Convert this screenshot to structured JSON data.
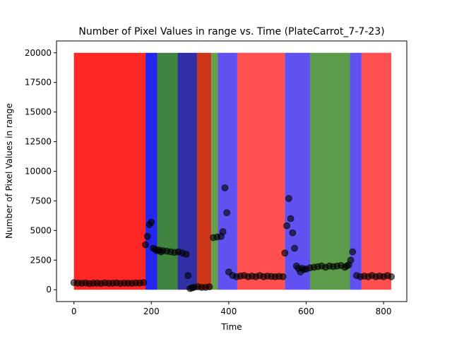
{
  "chart_data": {
    "type": "scatter",
    "title": "Number of Pixel Values in range vs. Time (PlateCarrot_7-7-23)",
    "xlabel": "Time",
    "ylabel": "Number of Pixel Values in range",
    "xlim": [
      -45,
      860
    ],
    "ylim": [
      -1000,
      21000
    ],
    "xticks": [
      0,
      200,
      400,
      600,
      800
    ],
    "yticks": [
      0,
      2500,
      5000,
      7500,
      10000,
      12500,
      15000,
      17500,
      20000
    ],
    "band_top": 20000,
    "bands": [
      {
        "x0": 0,
        "x1": 185,
        "color": "#ff0000",
        "opacity": 0.85
      },
      {
        "x0": 185,
        "x1": 215,
        "color": "#0000ee",
        "opacity": 0.85
      },
      {
        "x0": 215,
        "x1": 268,
        "color": "#1f6f1f",
        "opacity": 0.85
      },
      {
        "x0": 268,
        "x1": 318,
        "color": "#1a1a9a",
        "opacity": 0.9
      },
      {
        "x0": 318,
        "x1": 355,
        "color": "#c82000",
        "opacity": 0.9
      },
      {
        "x0": 355,
        "x1": 372,
        "color": "#4c8f2c",
        "opacity": 0.85
      },
      {
        "x0": 372,
        "x1": 422,
        "color": "#4433ee",
        "opacity": 0.85
      },
      {
        "x0": 422,
        "x1": 545,
        "color": "#ff3030",
        "opacity": 0.85
      },
      {
        "x0": 545,
        "x1": 610,
        "color": "#4433ee",
        "opacity": 0.85
      },
      {
        "x0": 610,
        "x1": 713,
        "color": "#3f8a2a",
        "opacity": 0.85
      },
      {
        "x0": 713,
        "x1": 743,
        "color": "#4433ee",
        "opacity": 0.85
      },
      {
        "x0": 743,
        "x1": 820,
        "color": "#ff3030",
        "opacity": 0.85
      }
    ],
    "series": [
      {
        "color": "#000000",
        "x": [
          0,
          10,
          20,
          30,
          40,
          50,
          60,
          70,
          80,
          90,
          100,
          110,
          120,
          130,
          140,
          150,
          160,
          170,
          180,
          185,
          190,
          195,
          200,
          205,
          210,
          215,
          220,
          225,
          230,
          240,
          250,
          260,
          270,
          280,
          290,
          295,
          300,
          305,
          310,
          320,
          330,
          340,
          350,
          360,
          370,
          380,
          385,
          390,
          395,
          400,
          410,
          420,
          430,
          440,
          450,
          460,
          470,
          480,
          490,
          500,
          510,
          520,
          530,
          540,
          545,
          550,
          555,
          560,
          565,
          570,
          575,
          580,
          585,
          590,
          595,
          600,
          610,
          620,
          630,
          640,
          650,
          660,
          670,
          680,
          690,
          700,
          705,
          710,
          715,
          720,
          730,
          740,
          750,
          760,
          770,
          780,
          790,
          800,
          810,
          820
        ],
        "y": [
          600,
          560,
          540,
          570,
          520,
          550,
          560,
          530,
          580,
          540,
          550,
          570,
          530,
          560,
          550,
          540,
          570,
          560,
          600,
          3800,
          4500,
          5500,
          5700,
          3500,
          3400,
          3300,
          3350,
          3200,
          3300,
          3250,
          3200,
          3150,
          3200,
          3100,
          3000,
          1200,
          100,
          150,
          200,
          250,
          200,
          200,
          250,
          4400,
          4450,
          4500,
          4900,
          8600,
          6500,
          1500,
          1200,
          1100,
          1150,
          1200,
          1100,
          1150,
          1100,
          1200,
          1100,
          1150,
          1120,
          1100,
          1130,
          1100,
          3100,
          5400,
          7700,
          6000,
          4800,
          3500,
          2000,
          1800,
          1500,
          1800,
          1700,
          1750,
          1850,
          1900,
          1950,
          2000,
          1900,
          2000,
          1950,
          2000,
          2050,
          1900,
          2000,
          2100,
          2500,
          3200,
          1200,
          1100,
          1150,
          1100,
          1200,
          1100,
          1150,
          1100,
          1200,
          1100
        ]
      }
    ]
  }
}
